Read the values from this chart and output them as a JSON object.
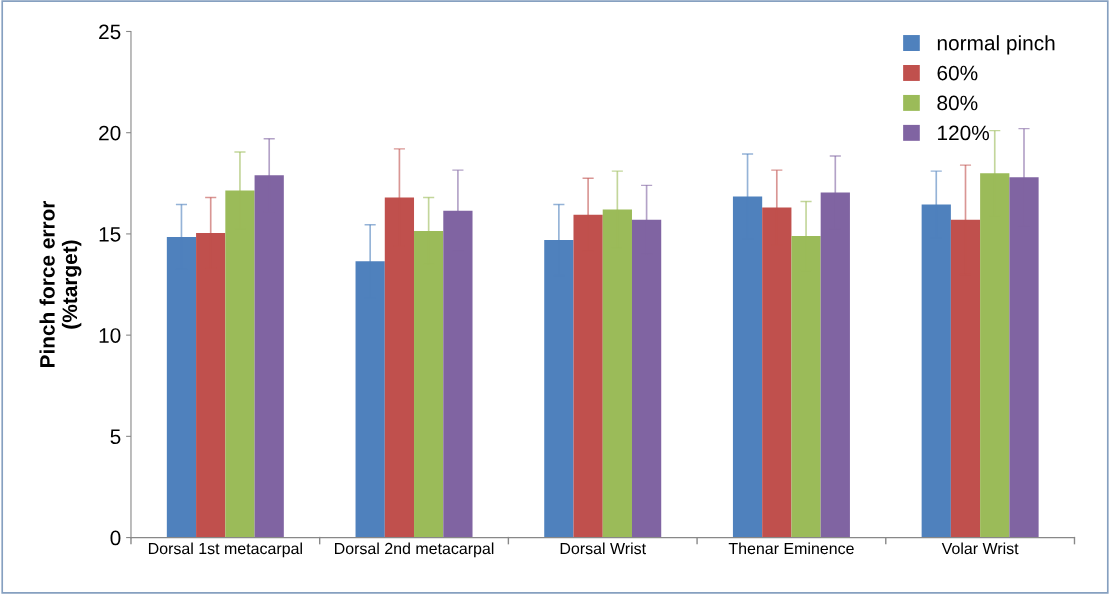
{
  "chart_data": {
    "type": "bar",
    "ylabel": "Pinch force error\n(%target)",
    "categories": [
      "Dorsal 1st metacarpal",
      "Dorsal 2nd metacarpal",
      "Dorsal Wrist",
      "Thenar Eminence",
      "Volar Wrist"
    ],
    "series": [
      {
        "name": "normal pinch",
        "color": "#4f81bd",
        "values": [
          14.85,
          13.65,
          14.7,
          16.85,
          16.45
        ],
        "errors": [
          1.6,
          1.8,
          1.75,
          2.1,
          1.65
        ]
      },
      {
        "name": "60%",
        "color": "#c0504d",
        "values": [
          15.05,
          16.8,
          15.95,
          16.3,
          15.7
        ],
        "errors": [
          1.75,
          2.4,
          1.8,
          1.85,
          2.7
        ]
      },
      {
        "name": "80%",
        "color": "#9bbb59",
        "values": [
          17.15,
          15.15,
          16.2,
          14.9,
          18.0
        ],
        "errors": [
          1.9,
          1.65,
          1.9,
          1.7,
          2.1
        ]
      },
      {
        "name": "120%",
        "color": "#8064a2",
        "values": [
          17.9,
          16.15,
          15.7,
          17.05,
          17.8
        ],
        "errors": [
          1.8,
          2.0,
          1.7,
          1.8,
          2.4
        ]
      }
    ],
    "ylim": [
      0,
      25
    ],
    "yticks": [
      0,
      5,
      10,
      15,
      20,
      25
    ],
    "grid": false,
    "legend": "top right"
  }
}
